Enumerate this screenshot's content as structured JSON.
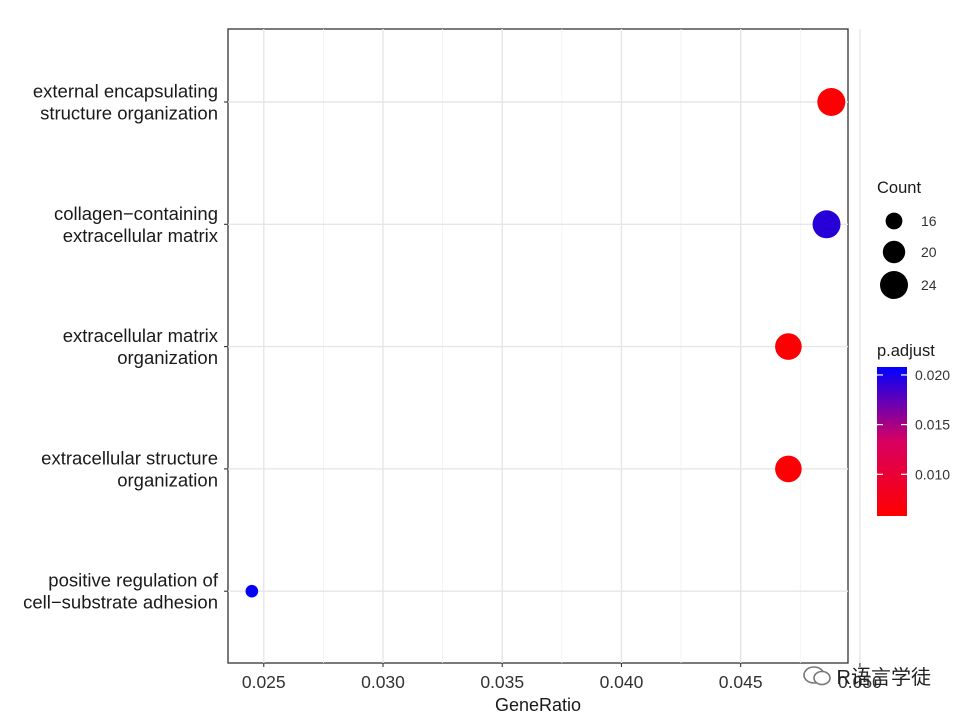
{
  "chart_data": {
    "type": "scatter",
    "title": "",
    "xlabel": "GeneRatio",
    "ylabel": "",
    "xlim": [
      0.0235,
      0.0495
    ],
    "xticks": [
      0.025,
      0.03,
      0.035,
      0.04,
      0.045,
      0.05
    ],
    "xtick_labels": [
      "0.025",
      "0.030",
      "0.035",
      "0.040",
      "0.045",
      "0.050"
    ],
    "categories": [
      [
        "external encapsulating",
        "structure organization"
      ],
      [
        "collagen−containing",
        "extracellular matrix"
      ],
      [
        "extracellular matrix",
        "organization"
      ],
      [
        "extracellular structure",
        "organization"
      ],
      [
        "positive regulation of",
        "cell−substrate adhesion"
      ]
    ],
    "points": [
      {
        "x": 0.0488,
        "count": 24,
        "p_adjust": 0.006
      },
      {
        "x": 0.0486,
        "count": 24,
        "p_adjust": 0.0185
      },
      {
        "x": 0.047,
        "count": 23,
        "p_adjust": 0.006
      },
      {
        "x": 0.047,
        "count": 23,
        "p_adjust": 0.006
      },
      {
        "x": 0.0245,
        "count": 13,
        "p_adjust": 0.0205
      }
    ],
    "size_legend": {
      "title": "Count",
      "values": [
        16,
        20,
        24
      ],
      "labels": [
        "16",
        "20",
        "24"
      ]
    },
    "color_legend": {
      "title": "p.adjust",
      "range": [
        0.0058,
        0.0208
      ],
      "ticks": [
        0.01,
        0.015,
        0.02
      ],
      "labels": [
        "0.010",
        "0.015",
        "0.020"
      ],
      "low_color": "#ff0000",
      "high_color": "#0000ff"
    },
    "grid": true,
    "legend_position": "right"
  },
  "watermark": {
    "text": "R语言学徒"
  }
}
